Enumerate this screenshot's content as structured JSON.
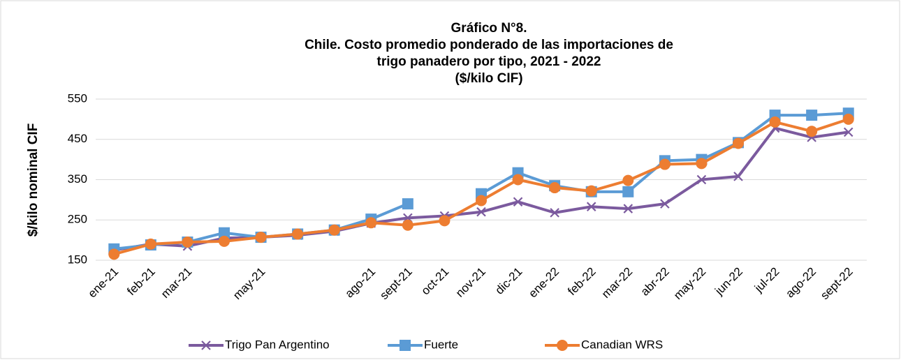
{
  "chart_data": {
    "type": "line",
    "title": [
      "Gráfico N°8.",
      "Chile. Costo promedio ponderado de las importaciones de",
      "trigo panadero por tipo, 2021 - 2022",
      "($/kilo CIF)"
    ],
    "y_label": "$/kilo nominal CIF",
    "categories": [
      "ene-21",
      "feb-21",
      "mar-21",
      null,
      "may-21",
      null,
      null,
      "ago-21",
      "sept-21",
      "oct-21",
      "nov-21",
      "dic-21",
      "ene-22",
      "feb-22",
      "mar-22",
      "abr-22",
      "may-22",
      "jun-22",
      "jul-22",
      "ago-22",
      "sept-22"
    ],
    "series": [
      {
        "name": "Trigo Pan Argentino",
        "color": "#7b5a9e",
        "marker": "x",
        "values": [
          175,
          190,
          185,
          205,
          207,
          212,
          222,
          242,
          255,
          260,
          270,
          295,
          268,
          283,
          278,
          290,
          350,
          358,
          478,
          455,
          468
        ]
      },
      {
        "name": "Fuerte",
        "color": "#5b9bd5",
        "marker": "square",
        "values": [
          178,
          188,
          195,
          218,
          207,
          215,
          225,
          252,
          290,
          null,
          315,
          367,
          335,
          320,
          320,
          397,
          400,
          442,
          510,
          510,
          515
        ]
      },
      {
        "name": "Canadian WRS",
        "color": "#ed7d31",
        "marker": "circle",
        "values": [
          165,
          190,
          195,
          197,
          207,
          215,
          225,
          243,
          237,
          248,
          298,
          350,
          330,
          322,
          348,
          388,
          390,
          440,
          493,
          470,
          500
        ]
      }
    ],
    "ylim": [
      150,
      550
    ],
    "yticks": [
      150,
      250,
      350,
      450,
      550
    ],
    "grid": true,
    "legend": "bottom"
  }
}
